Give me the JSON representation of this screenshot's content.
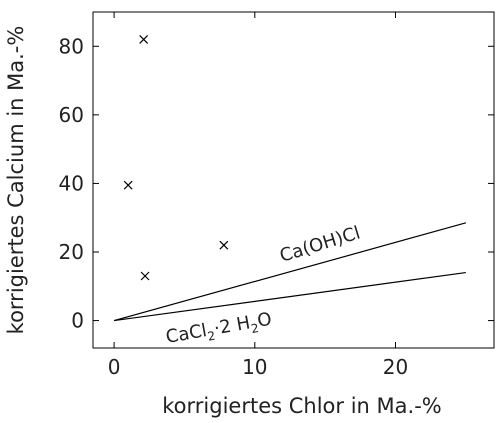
{
  "chart_data": {
    "type": "scatter",
    "xlabel": "korrigiertes Chlor in Ma.-%",
    "ylabel": "korrigiertes Calcium in Ma.-%",
    "xlim": [
      -1.5,
      27
    ],
    "ylim": [
      -8,
      90
    ],
    "xticks": [
      "0",
      "10",
      "20"
    ],
    "xtick_values": [
      0,
      10,
      20
    ],
    "yticks": [
      "0",
      "20",
      "40",
      "60",
      "80"
    ],
    "ytick_values": [
      0,
      20,
      40,
      60,
      80
    ],
    "marker": "×",
    "series": [
      {
        "points": [
          {
            "x": 2.1,
            "y": 82
          },
          {
            "x": 1.0,
            "y": 39.5
          },
          {
            "x": 7.8,
            "y": 22
          },
          {
            "x": 2.2,
            "y": 13
          }
        ]
      }
    ],
    "reference_lines": [
      {
        "label_main": "Ca(OH)Cl",
        "points": [
          [
            0,
            0
          ],
          [
            25,
            28.5
          ]
        ]
      },
      {
        "label_main": "CaCl",
        "label_sub": "2",
        "label_mid": "·2 H",
        "label_sub2": "2",
        "label_end": "O",
        "points": [
          [
            0,
            0
          ],
          [
            25,
            14
          ]
        ]
      }
    ],
    "grid": false,
    "colors": {
      "line": "#000000",
      "marker": "#000000",
      "text": "#222222"
    }
  }
}
